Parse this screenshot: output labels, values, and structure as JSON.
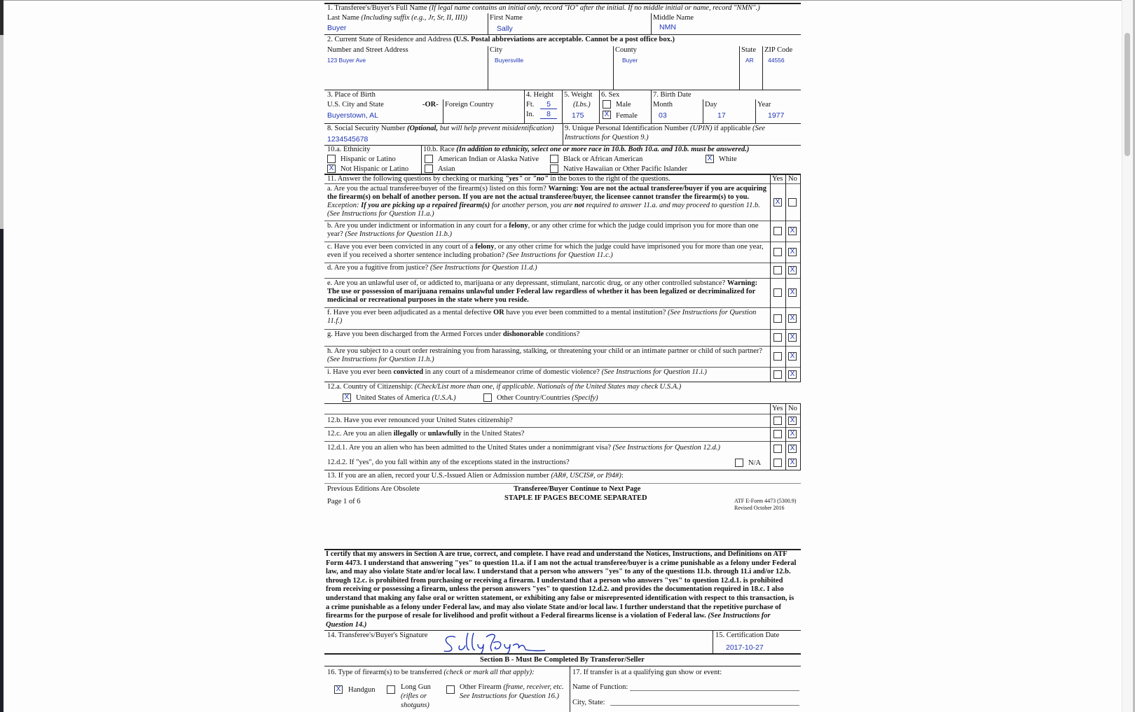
{
  "viewer": {
    "scrollbar": "vertical"
  },
  "q1": {
    "label": "1.  Transferee's/Buyer's Full Name",
    "note": "(If legal name contains an initial only, record \"IO\" after the initial.  If no middle initial or name, record \"NMN\".)",
    "last_label": "Last Name",
    "last_note": "(Including suffix (e.g., Jr, Sr, II, III))",
    "first_label": "First Name",
    "middle_label": "Middle Name",
    "last": "Buyer",
    "first": "Sally",
    "middle": "NMN"
  },
  "q2": {
    "label": "2.  Current State of Residence and Address",
    "note": "(U.S. Postal abbreviations are acceptable.  Cannot be a post office box.)",
    "street_label": "Number and Street Address",
    "city_label": "City",
    "county_label": "County",
    "state_label": "State",
    "zip_label": "ZIP Code",
    "street": "123 Buyer Ave",
    "city": "Buyersville",
    "county": "Buyer",
    "state": "AR",
    "zip": "44556"
  },
  "q3": {
    "label": "3.  Place of Birth",
    "us_label": "U.S. City and State",
    "or": "-OR-",
    "foreign_label": "Foreign Country",
    "us_value": "Buyerstown, AL"
  },
  "q4": {
    "label": "4.  Height",
    "ft_label": "Ft.",
    "in_label": "In.",
    "ft": "5",
    "in": "8"
  },
  "q5": {
    "label": "5.  Weight",
    "unit": "(Lbs.)",
    "value": "175"
  },
  "q6": {
    "label": "6.  Sex",
    "male": "Male",
    "female": "Female",
    "male_checked": false,
    "female_checked": true
  },
  "q7": {
    "label": "7.  Birth Date",
    "month_label": "Month",
    "day_label": "Day",
    "year_label": "Year",
    "month": "03",
    "day": "17",
    "year": "1977"
  },
  "q8": {
    "label": "8.  Social Security Number",
    "note_b": "(Optional,",
    "note": " but will help prevent misidentification)",
    "value": "1234545678"
  },
  "q9": {
    "label": "9.  Unique Personal Identification Number",
    "note1": "(UPIN)",
    "label2": " if applicable",
    "note2": " (See",
    "line2": "Instructions for Question 9.)"
  },
  "q10": {
    "a_label": "10.a.  Ethnicity",
    "b_label": "10.b.  Race",
    "b_note": "(In addition to ethnicity, select one or more race in 10.b.  Both 10.a. and 10.b. must be answered.)",
    "ethnicity": [
      {
        "label": "Hispanic or Latino",
        "checked": false
      },
      {
        "label": "Not Hispanic or Latino",
        "checked": true
      }
    ],
    "race": [
      {
        "label": "American Indian or Alaska Native",
        "checked": false
      },
      {
        "label": "Black or African American",
        "checked": false
      },
      {
        "label": "White",
        "checked": true
      },
      {
        "label": "Asian",
        "checked": false
      },
      {
        "label": "Native Hawaiian or Other Pacific Islander",
        "checked": false
      }
    ]
  },
  "q11": {
    "header": [
      {
        "t": "11.  Answer the following questions by checking or marking "
      },
      {
        "t": "\"yes\"",
        "s": "bi"
      },
      {
        "t": " or "
      },
      {
        "t": "\"no\"",
        "s": "bi"
      },
      {
        "t": " in the boxes to the right of the questions."
      }
    ],
    "yes_label": "Yes",
    "no_label": "No",
    "items": [
      {
        "seg": [
          {
            "t": "a.  Are you the actual transferee/buyer of the firearm(s) listed on this form? "
          },
          {
            "t": "Warning: You are not the actual transferee/buyer if you are acquiring the firearm(s) on behalf of another person.  If you are not the actual transferee/buyer, the licensee cannot transfer the firearm(s) to you.",
            "s": "b"
          },
          {
            "t": "  Exception:  ",
            "s": "i"
          },
          {
            "t": "If you are picking up a repaired firearm(s)",
            "s": "bi"
          },
          {
            "t": " for another person, you are ",
            "s": "i"
          },
          {
            "t": "not",
            "s": "bi"
          },
          {
            "t": " required to answer 11.a. and may proceed to question 11.b. (See Instructions for Question 11.a.)",
            "s": "i"
          }
        ],
        "yes": true,
        "no": false
      },
      {
        "seg": [
          {
            "t": "b.  Are you under indictment or information in any court for a "
          },
          {
            "t": "felony",
            "s": "b"
          },
          {
            "t": ", or any other crime for which the judge could imprison you for more than one year?  "
          },
          {
            "t": "(See Instructions for Question 11.b.)",
            "s": "i"
          }
        ],
        "yes": false,
        "no": true
      },
      {
        "seg": [
          {
            "t": "c.  Have you ever been convicted in any court of a "
          },
          {
            "t": "felony",
            "s": "b"
          },
          {
            "t": ", or any other crime for which the judge could have imprisoned you for more than one year, even if you received a shorter sentence including probation?  "
          },
          {
            "t": "(See Instructions for Question 11.c.)",
            "s": "i"
          }
        ],
        "yes": false,
        "no": true
      },
      {
        "seg": [
          {
            "t": "d.  Are you a fugitive from justice? "
          },
          {
            "t": "(See Instructions for Question 11.d.)",
            "s": "i"
          }
        ],
        "yes": false,
        "no": true
      },
      {
        "seg": [
          {
            "t": "e.  Are you an unlawful user of, or addicted to, marijuana or any depressant, stimulant, narcotic drug, or any other controlled substance? "
          },
          {
            "t": "Warning:  The use or possession of marijuana remains unlawful under Federal law regardless of whether it has been legalized or decriminalized for medicinal or recreational purposes in the state where you reside.",
            "s": "b"
          }
        ],
        "yes": false,
        "no": true
      },
      {
        "seg": [
          {
            "t": "f.  Have you ever been adjudicated as a mental defective "
          },
          {
            "t": "OR",
            "s": "b"
          },
          {
            "t": " have you ever been committed to a mental institution? "
          },
          {
            "t": "(See Instructions for Question 11.f.)",
            "s": "i"
          }
        ],
        "yes": false,
        "no": true
      },
      {
        "seg": [
          {
            "t": "g.  Have you been discharged from the Armed Forces under "
          },
          {
            "t": "dishonorable",
            "s": "b"
          },
          {
            "t": " conditions?"
          }
        ],
        "yes": false,
        "no": true
      },
      {
        "seg": [
          {
            "t": "h.  Are you subject to a court order restraining you from harassing, stalking, or threatening your child or an intimate partner or child of such partner? "
          },
          {
            "t": "(See Instructions for Question 11.h.)",
            "s": "i"
          }
        ],
        "yes": false,
        "no": true
      },
      {
        "seg": [
          {
            "t": "i.  Have you ever been "
          },
          {
            "t": "convicted",
            "s": "b"
          },
          {
            "t": " in any court of a misdemeanor crime of domestic violence? "
          },
          {
            "t": "(See Instructions for Question 11.i.)",
            "s": "i"
          }
        ],
        "yes": false,
        "no": true
      }
    ]
  },
  "q12a": {
    "label": "12.a.  Country of Citizenship:",
    "note": "(Check/List more than one, if applicable.  Nationals of the United States may check U.S.A.)",
    "usa": "United States of America",
    "usa_note": "(U.S.A.)",
    "usa_checked": true,
    "other": "Other Country/Countries",
    "other_note": "(Specify)",
    "other_checked": false
  },
  "q12": {
    "yes_label": "Yes",
    "no_label": "No",
    "na_label": "N/A",
    "na_checked": false,
    "items": [
      {
        "seg": [
          {
            "t": "12.b.  Have you ever renounced your United States citizenship?"
          }
        ],
        "yes": false,
        "no": true
      },
      {
        "seg": [
          {
            "t": "12.c.  Are you an alien "
          },
          {
            "t": "illegally",
            "s": "b"
          },
          {
            "t": " or "
          },
          {
            "t": "unlawfully",
            "s": "b"
          },
          {
            "t": " in the United States?"
          }
        ],
        "yes": false,
        "no": true
      },
      {
        "seg": [
          {
            "t": "12.d.1.  Are you an alien who has been admitted to the United States under a nonimmigrant visa? "
          },
          {
            "t": "(See Instructions for Question 12.d.)",
            "s": "i"
          }
        ],
        "yes": false,
        "no": true
      },
      {
        "seg": [
          {
            "t": "12.d.2.  If \"yes\", do you fall within any of the exceptions stated in the instructions?"
          }
        ],
        "yes": false,
        "no": true
      }
    ]
  },
  "q13": {
    "label": "13.  If you are an alien, record your U.S.-Issued Alien or Admission number ",
    "note": "(AR#, USCIS#, or I94#)",
    "colon": ":"
  },
  "footer": {
    "obsolete": "Previous Editions Are Obsolete",
    "page": "Page 1 of 6",
    "continue": "Transferee/Buyer Continue to Next Page",
    "staple": "STAPLE IF PAGES BECOME SEPARATED",
    "form_id": "ATF E-Form 4473 (5300.9)",
    "revised": "Revised October 2016"
  },
  "certification": {
    "text": "I certify that my answers in Section A are true, correct, and complete.  I have read and understand the Notices, Instructions, and Definitions on ATF Form 4473.  I understand that answering \"yes\" to question 11.a. if I am not the actual transferee/buyer is a crime punishable as a felony under Federal law, and may also violate State and/or local law.  I understand that a person who answers \"yes\" to any of the questions 11.b. through 11.i and/or 12.b. through 12.c. is prohibited from purchasing or receiving a firearm.  I understand that a person who answers \"yes\" to question 12.d.1. is prohibited from receiving or possessing a firearm, unless the person answers \"yes\" to question 12.d.2. and provides the documentation required in 18.c.  I also understand that making any false oral or written statement, or exhibiting any false or misrepresented identification with respect to this transaction, is a crime punishable as a felony under Federal law, and may also violate State and/or local law.  I further understand that the repetitive purchase of firearms for the purpose of resale for livelihood and profit without a Federal firearms license is a violation of Federal law.  ",
    "note": "(See Instructions for Question 14.)"
  },
  "q14": {
    "label": "14.  Transferee's/Buyer's Signature",
    "signature": "Sally Buyer"
  },
  "q15": {
    "label": "15.  Certification Date",
    "value": "2017-10-27"
  },
  "section_b": {
    "title": "Section B - Must Be Completed By Transferor/Seller"
  },
  "q16": {
    "label": "16.  Type of firearm(s) to be transferred ",
    "note": "(check or mark all that apply):",
    "handgun": "Handgun",
    "handgun_checked": true,
    "longgun": "Long Gun",
    "longgun_note1": "(rifles or",
    "longgun_note2": "shotguns)",
    "longgun_checked": false,
    "other": "Other Firearm ",
    "other_note1": "(frame, receiver, etc.",
    "other_note2": "See Instructions for Question 16.)",
    "other_checked": false
  },
  "q17": {
    "label": "17.  If transfer is at a qualifying gun show or event:",
    "function_label": "Name of Function:",
    "city_label": "City, State:"
  },
  "colors": {
    "filled_value": "#1f35b5",
    "line": "#222222"
  }
}
